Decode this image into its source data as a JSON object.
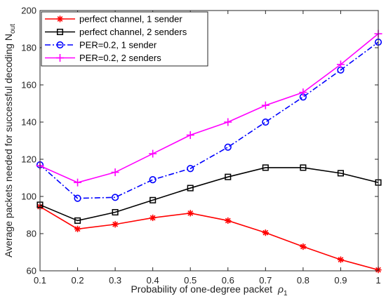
{
  "chart_data": {
    "type": "line",
    "xlabel": "Probability of one-degree packet",
    "xlabel_symbol": "ρ",
    "xlabel_sub": "1",
    "ylabel": "Average packets needed for successful decoding N",
    "ylabel_sub": "out",
    "x": [
      0.1,
      0.2,
      0.3,
      0.4,
      0.5,
      0.6,
      0.7,
      0.8,
      0.9,
      1.0
    ],
    "xlim": [
      0.1,
      1.0
    ],
    "ylim": [
      60,
      200
    ],
    "xticks": [
      "0.1",
      "0.2",
      "0.3",
      "0.4",
      "0.5",
      "0.6",
      "0.7",
      "0.8",
      "0.9",
      "1"
    ],
    "yticks": [
      "60",
      "80",
      "100",
      "120",
      "140",
      "160",
      "180",
      "200"
    ],
    "ytick_values": [
      60,
      80,
      100,
      120,
      140,
      160,
      180,
      200
    ],
    "grid": false,
    "legend_position": "top-left",
    "series": [
      {
        "name": "perfect channel, 1 sender",
        "values": [
          94.5,
          82.5,
          85,
          88.5,
          91,
          87,
          80.5,
          73,
          66,
          60.5
        ],
        "color": "#ff0000",
        "marker": "asterisk",
        "dash": "solid"
      },
      {
        "name": "perfect channel, 2 senders",
        "values": [
          95.5,
          87,
          91.5,
          98,
          104.5,
          110.5,
          115.5,
          115.5,
          112.5,
          107.5
        ],
        "color": "#000000",
        "marker": "square",
        "dash": "solid"
      },
      {
        "name": "PER=0.2, 1 sender",
        "values": [
          117,
          99,
          99.5,
          109,
          115,
          126.5,
          140,
          153.5,
          168,
          183
        ],
        "color": "#0000ff",
        "marker": "circle",
        "dash": "dashdot"
      },
      {
        "name": "PER=0.2, 2 senders",
        "values": [
          116.5,
          107.5,
          113,
          123,
          133,
          140,
          149,
          156,
          171,
          187.5
        ],
        "color": "#ff00ff",
        "marker": "plus",
        "dash": "solid"
      }
    ]
  }
}
